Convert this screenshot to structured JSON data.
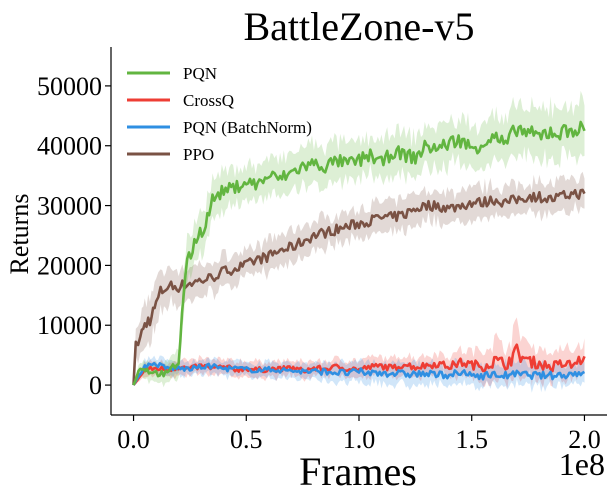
{
  "chart_data": {
    "type": "line",
    "title": "BattleZone-v5",
    "xlabel": "Frames",
    "ylabel": "Returns",
    "x_scale_label": "1e8",
    "xlim": [
      -0.1,
      2.1
    ],
    "ylim": [
      -5000,
      56500
    ],
    "x_ticks": [
      0.0,
      0.5,
      1.0,
      1.5,
      2.0
    ],
    "x_tick_labels": [
      "0.0",
      "0.5",
      "1.0",
      "1.5",
      "2.0"
    ],
    "y_ticks": [
      0,
      10000,
      20000,
      30000,
      40000,
      50000
    ],
    "y_tick_labels": [
      "0",
      "10000",
      "20000",
      "30000",
      "40000",
      "50000"
    ],
    "legend_position": "top-left",
    "series": [
      {
        "name": "PQN",
        "color": "#62b540",
        "x": [
          0.0,
          0.03,
          0.06,
          0.1,
          0.15,
          0.2,
          0.23,
          0.27,
          0.32,
          0.35,
          0.4,
          0.45,
          0.5,
          0.55,
          0.6,
          0.65,
          0.7,
          0.75,
          0.8,
          0.85,
          0.9,
          0.95,
          1.0,
          1.05,
          1.1,
          1.15,
          1.2,
          1.25,
          1.3,
          1.35,
          1.4,
          1.45,
          1.5,
          1.55,
          1.6,
          1.65,
          1.7,
          1.75,
          1.8,
          1.85,
          1.9,
          1.95,
          2.0
        ],
        "values": [
          0,
          3000,
          2500,
          2000,
          1800,
          4000,
          19000,
          24000,
          27000,
          31000,
          32500,
          33000,
          34000,
          33500,
          35000,
          34500,
          35500,
          36500,
          37000,
          36500,
          37500,
          37000,
          37500,
          38500,
          37000,
          39000,
          38500,
          38000,
          40000,
          39500,
          40500,
          41000,
          39500,
          40500,
          41500,
          40000,
          43000,
          42000,
          41500,
          42500,
          42000,
          43000,
          42500
        ],
        "band_width": [
          0,
          1200,
          1500,
          1500,
          1500,
          3000,
          3500,
          3500,
          3500,
          3000,
          3000,
          3000,
          3000,
          3000,
          3000,
          3000,
          3000,
          3200,
          3200,
          3200,
          3200,
          3200,
          3300,
          3300,
          3300,
          3300,
          3300,
          3300,
          3500,
          3500,
          3500,
          3600,
          3600,
          3600,
          3800,
          3800,
          4000,
          4000,
          4000,
          4200,
          4200,
          4200,
          4200
        ]
      },
      {
        "name": "CrossQ",
        "color": "#ee3d34",
        "x": [
          0.0,
          0.05,
          0.1,
          0.15,
          0.2,
          0.25,
          0.3,
          0.35,
          0.4,
          0.45,
          0.5,
          0.55,
          0.6,
          0.65,
          0.7,
          0.75,
          0.8,
          0.85,
          0.9,
          0.95,
          1.0,
          1.05,
          1.1,
          1.15,
          1.2,
          1.25,
          1.3,
          1.35,
          1.4,
          1.45,
          1.5,
          1.55,
          1.6,
          1.65,
          1.7,
          1.75,
          1.8,
          1.85,
          1.9,
          1.95,
          2.0
        ],
        "values": [
          0,
          2500,
          2800,
          2600,
          3000,
          2700,
          3200,
          2800,
          3000,
          2600,
          2800,
          2500,
          2700,
          2600,
          2900,
          2400,
          2800,
          2700,
          3000,
          2800,
          2600,
          3000,
          3200,
          2800,
          3500,
          3000,
          3300,
          3600,
          3100,
          3800,
          3400,
          3200,
          4000,
          3500,
          5500,
          4000,
          3600,
          3000,
          3500,
          3300,
          4800
        ],
        "band_width": [
          0,
          1200,
          1200,
          1200,
          1300,
          1300,
          1300,
          1300,
          1300,
          1300,
          1300,
          1300,
          1300,
          1300,
          1300,
          1300,
          1300,
          1300,
          1400,
          1400,
          1400,
          1500,
          1500,
          1500,
          1600,
          1600,
          1700,
          1800,
          1800,
          2000,
          2200,
          2500,
          3500,
          3000,
          4000,
          3000,
          2500,
          2500,
          2500,
          2500,
          3000
        ]
      },
      {
        "name": "PQN (BatchNorm)",
        "color": "#2f8fe2",
        "x": [
          0.0,
          0.05,
          0.1,
          0.15,
          0.2,
          0.25,
          0.3,
          0.35,
          0.4,
          0.45,
          0.5,
          0.55,
          0.6,
          0.65,
          0.7,
          0.75,
          0.8,
          0.85,
          0.9,
          0.95,
          1.0,
          1.05,
          1.1,
          1.15,
          1.2,
          1.25,
          1.3,
          1.35,
          1.4,
          1.45,
          1.5,
          1.55,
          1.6,
          1.65,
          1.7,
          1.75,
          1.8,
          1.85,
          1.9,
          1.95,
          2.0
        ],
        "values": [
          0,
          3200,
          3500,
          2800,
          2800,
          2700,
          3000,
          3200,
          2700,
          2800,
          2600,
          2500,
          2600,
          2500,
          2400,
          2300,
          2200,
          2300,
          2100,
          2000,
          2200,
          2000,
          2100,
          2000,
          1800,
          1900,
          1800,
          1700,
          1800,
          1900,
          1700,
          1600,
          1700,
          1600,
          1800,
          1700,
          1600,
          1600,
          1700,
          1900,
          2200
        ],
        "band_width": [
          0,
          1000,
          1200,
          1200,
          1200,
          1200,
          1200,
          1200,
          1200,
          1200,
          1200,
          1200,
          1200,
          1200,
          1300,
          1400,
          1500,
          1500,
          1600,
          1600,
          1700,
          1700,
          1800,
          1800,
          1800,
          1800,
          1800,
          1800,
          1800,
          1800,
          1800,
          1800,
          1800,
          1800,
          1800,
          1800,
          1800,
          1800,
          1800,
          1800,
          1800
        ]
      },
      {
        "name": "PPO",
        "color": "#7a5244",
        "x": [
          0.0,
          0.01,
          0.03,
          0.05,
          0.08,
          0.1,
          0.12,
          0.15,
          0.2,
          0.25,
          0.3,
          0.35,
          0.4,
          0.45,
          0.5,
          0.55,
          0.6,
          0.65,
          0.7,
          0.75,
          0.8,
          0.85,
          0.9,
          0.95,
          1.0,
          1.05,
          1.1,
          1.15,
          1.2,
          1.25,
          1.3,
          1.35,
          1.4,
          1.45,
          1.5,
          1.55,
          1.6,
          1.65,
          1.7,
          1.75,
          1.8,
          1.85,
          1.9,
          1.95,
          2.0
        ],
        "values": [
          0,
          6500,
          8000,
          10000,
          11500,
          13500,
          15500,
          16500,
          16500,
          17000,
          17500,
          18000,
          19000,
          19500,
          20000,
          21000,
          21500,
          22500,
          23000,
          24000,
          25000,
          25500,
          26000,
          26500,
          27000,
          27500,
          28000,
          28000,
          28500,
          29500,
          30000,
          30000,
          29500,
          30000,
          30500,
          30500,
          31000,
          30500,
          31000,
          31500,
          31500,
          31000,
          31500,
          32000,
          32000
        ],
        "band_width": [
          0,
          2500,
          3000,
          3500,
          3500,
          3500,
          3200,
          3000,
          2800,
          2500,
          2500,
          2500,
          2500,
          2500,
          2500,
          2500,
          2500,
          2500,
          2500,
          2500,
          2500,
          2500,
          2500,
          2500,
          2500,
          2500,
          2500,
          2500,
          2500,
          2500,
          2500,
          2500,
          2500,
          2500,
          2500,
          2500,
          2500,
          2500,
          2500,
          2500,
          2500,
          2500,
          2500,
          2500,
          2500
        ]
      }
    ]
  }
}
